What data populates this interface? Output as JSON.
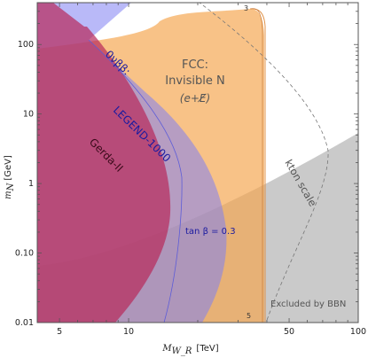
{
  "chart_data": {
    "type": "area",
    "xscale": "log",
    "yscale": "log",
    "xlim": [
      4,
      100
    ],
    "ylim": [
      0.01,
      400
    ],
    "grid": false,
    "x_ticks": [
      "5",
      "10",
      "50",
      "100"
    ],
    "y_ticks": [
      "0.01",
      "0.10",
      "1",
      "10",
      "100"
    ],
    "xlabel": {
      "main": "M",
      "sub": "W_R",
      "unit": "[TeV]"
    },
    "ylabel": {
      "main": "m",
      "sub": "N",
      "unit": "[GeV]"
    },
    "regions": [
      {
        "label": "FCC: Invisible N (e+E̸)",
        "lines": [
          "FCC:",
          "Invisible N",
          "(e+E̸)"
        ],
        "color": "#f5a54e"
      },
      {
        "label": "0νββ: LEGEND-1000",
        "lines": [
          "0νββ:",
          "LEGEND-1000"
        ],
        "color": "#7f7ff2"
      },
      {
        "label": "Gerda-II",
        "color": "#c0305e"
      },
      {
        "label": "kton scale",
        "color": "#777777"
      },
      {
        "label": "Excluded by BBN",
        "color": "#b0b0b0"
      }
    ],
    "annotations": [
      "tan β = 0.3",
      "3",
      "5"
    ]
  },
  "colors": {
    "fcc": "#f5a54e",
    "legend": "#7f7ff2",
    "gerda": "#c0305e",
    "bbn": "#b0b0b0",
    "ton_text": "#1a1aa0",
    "frame": "#555555"
  }
}
